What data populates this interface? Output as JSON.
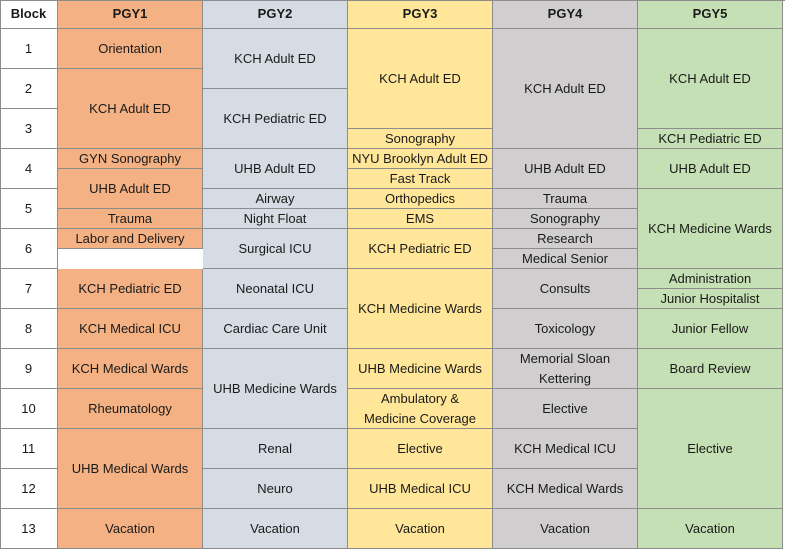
{
  "colors": {
    "pgy1": "#f4b183",
    "pgy2": "#d6dce4",
    "pgy3": "#ffe699",
    "pgy4": "#d0cece",
    "pgy5": "#c5e0b4",
    "block": "#ffffff"
  },
  "headers": [
    "Block",
    "PGY1",
    "PGY2",
    "PGY3",
    "PGY4",
    "PGY5"
  ],
  "blocks": [
    "1",
    "2",
    "3",
    "4",
    "5",
    "6",
    "7",
    "8",
    "9",
    "10",
    "11",
    "12",
    "13"
  ],
  "columns": [
    {
      "name": "PGY1",
      "cells": [
        {
          "r0": 1,
          "r1": 2,
          "lines": [
            "Orientation"
          ]
        },
        {
          "r0": 2,
          "r1": 7,
          "lines": [
            "KCH Adult ED"
          ]
        },
        {
          "r0": 7,
          "r1": 8,
          "lines": [
            "GYN Sonography"
          ]
        },
        {
          "r0": 8,
          "r1": 10,
          "lines": [
            "UHB Adult ED"
          ]
        },
        {
          "r0": 10,
          "r1": 11,
          "lines": [
            "Trauma"
          ]
        },
        {
          "r0": 11,
          "r1": 12,
          "lines": [
            "Labor and Delivery"
          ]
        },
        {
          "r0": 12,
          "r1": 14,
          "lines": [
            "KCH Pediatric ED"
          ]
        },
        {
          "r0": 14,
          "r1": 16,
          "lines": [
            "KCH Medical ICU"
          ]
        },
        {
          "r0": 16,
          "r1": 18,
          "lines": [
            "KCH Medical Wards"
          ]
        },
        {
          "r0": 18,
          "r1": 20,
          "lines": [
            "Rheumatology"
          ]
        },
        {
          "r0": 20,
          "r1": 24,
          "lines": [
            "UHB Medical Wards"
          ]
        },
        {
          "r0": 24,
          "r1": 26,
          "lines": [
            "Vacation"
          ]
        }
      ]
    },
    {
      "name": "PGY2",
      "cells": [
        {
          "r0": 1,
          "r1": 4,
          "lines": [
            "KCH Adult ED"
          ]
        },
        {
          "r0": 4,
          "r1": 7,
          "lines": [
            "KCH Pediatric ED"
          ]
        },
        {
          "r0": 7,
          "r1": 9,
          "lines": [
            "UHB Adult ED"
          ]
        },
        {
          "r0": 9,
          "r1": 10,
          "lines": [
            "Airway"
          ]
        },
        {
          "r0": 10,
          "r1": 11,
          "lines": [
            "Night Float"
          ]
        },
        {
          "r0": 11,
          "r1": 14,
          "lines": [
            "Surgical ICU"
          ]
        },
        {
          "r0": 14,
          "r1": 16,
          "lines": [
            "Neonatal ICU"
          ]
        },
        {
          "r0": 16,
          "r1": 18,
          "lines": [
            "Cardiac Care Unit"
          ]
        },
        {
          "r0": 18,
          "r1": 22,
          "lines": [
            "UHB Medicine Wards"
          ]
        },
        {
          "r0": 22,
          "r1": 24,
          "lines": [
            "Renal"
          ]
        },
        {
          "r0": 24,
          "r1": 26,
          "lines": [
            "Neuro"
          ]
        },
        {
          "r0": 26,
          "r1": 28,
          "lines": [
            "Vacation"
          ]
        }
      ]
    },
    {
      "name": "PGY3",
      "cells": [
        {
          "r0": 1,
          "r1": 6,
          "lines": [
            "KCH Adult ED"
          ]
        },
        {
          "r0": 6,
          "r1": 7,
          "lines": [
            "Sonography"
          ]
        },
        {
          "r0": 7,
          "r1": 8,
          "lines": [
            "NYU Brooklyn Adult ED"
          ]
        },
        {
          "r0": 8,
          "r1": 9,
          "lines": [
            "Fast Track"
          ]
        },
        {
          "r0": 9,
          "r1": 10,
          "lines": [
            "Orthopedics"
          ]
        },
        {
          "r0": 10,
          "r1": 11,
          "lines": [
            "EMS"
          ]
        },
        {
          "r0": 11,
          "r1": 13,
          "lines": [
            "KCH Pediatric ED"
          ]
        },
        {
          "r0": 13,
          "r1": 17,
          "lines": [
            "KCH Medicine Wards"
          ]
        },
        {
          "r0": 17,
          "r1": 19,
          "lines": [
            "UHB Medicine Wards"
          ]
        },
        {
          "r0": 19,
          "r1": 21,
          "lines": [
            "Ambulatory &",
            "Medicine Coverage"
          ]
        },
        {
          "r0": 21,
          "r1": 23,
          "lines": [
            "Elective"
          ]
        },
        {
          "r0": 23,
          "r1": 25,
          "lines": [
            "UHB Medical ICU"
          ]
        },
        {
          "r0": 25,
          "r1": 27,
          "lines": [
            "Vacation"
          ]
        }
      ]
    },
    {
      "name": "PGY4",
      "cells": [
        {
          "r0": 1,
          "r1": 7,
          "lines": [
            "KCH Adult ED"
          ]
        },
        {
          "r0": 7,
          "r1": 9,
          "lines": [
            "UHB Adult ED"
          ]
        },
        {
          "r0": 9,
          "r1": 10,
          "lines": [
            "Trauma"
          ]
        },
        {
          "r0": 10,
          "r1": 11,
          "lines": [
            "Sonography"
          ]
        },
        {
          "r0": 11,
          "r1": 12,
          "lines": [
            "Research"
          ]
        },
        {
          "r0": 12,
          "r1": 13,
          "lines": [
            "Medical Senior"
          ]
        },
        {
          "r0": 13,
          "r1": 15,
          "lines": [
            "Consults"
          ]
        },
        {
          "r0": 15,
          "r1": 17,
          "lines": [
            "Toxicology"
          ]
        },
        {
          "r0": 17,
          "r1": 19,
          "lines": [
            "Memorial Sloan",
            "Kettering"
          ]
        },
        {
          "r0": 19,
          "r1": 21,
          "lines": [
            "Elective"
          ]
        },
        {
          "r0": 21,
          "r1": 23,
          "lines": [
            "KCH Medical ICU"
          ]
        },
        {
          "r0": 23,
          "r1": 25,
          "lines": [
            "KCH Medical Wards"
          ]
        },
        {
          "r0": 25,
          "r1": 27,
          "lines": [
            "Vacation"
          ]
        }
      ]
    },
    {
      "name": "PGY5",
      "cells": [
        {
          "r0": 1,
          "r1": 6,
          "lines": [
            "KCH Adult ED"
          ]
        },
        {
          "r0": 6,
          "r1": 7,
          "lines": [
            "KCH Pediatric ED"
          ]
        },
        {
          "r0": 7,
          "r1": 9,
          "lines": [
            "UHB Adult ED"
          ]
        },
        {
          "r0": 9,
          "r1": 13,
          "lines": [
            "KCH Medicine Wards"
          ]
        },
        {
          "r0": 13,
          "r1": 14,
          "lines": [
            "Administration"
          ]
        },
        {
          "r0": 14,
          "r1": 15,
          "lines": [
            "Junior Hospitalist"
          ]
        },
        {
          "r0": 15,
          "r1": 17,
          "lines": [
            "Junior Fellow"
          ]
        },
        {
          "r0": 17,
          "r1": 19,
          "lines": [
            "Board Review"
          ]
        },
        {
          "r0": 19,
          "r1": 25,
          "lines": [
            "Elective"
          ]
        },
        {
          "r0": 25,
          "r1": 27,
          "lines": [
            "Vacation"
          ]
        }
      ]
    }
  ]
}
